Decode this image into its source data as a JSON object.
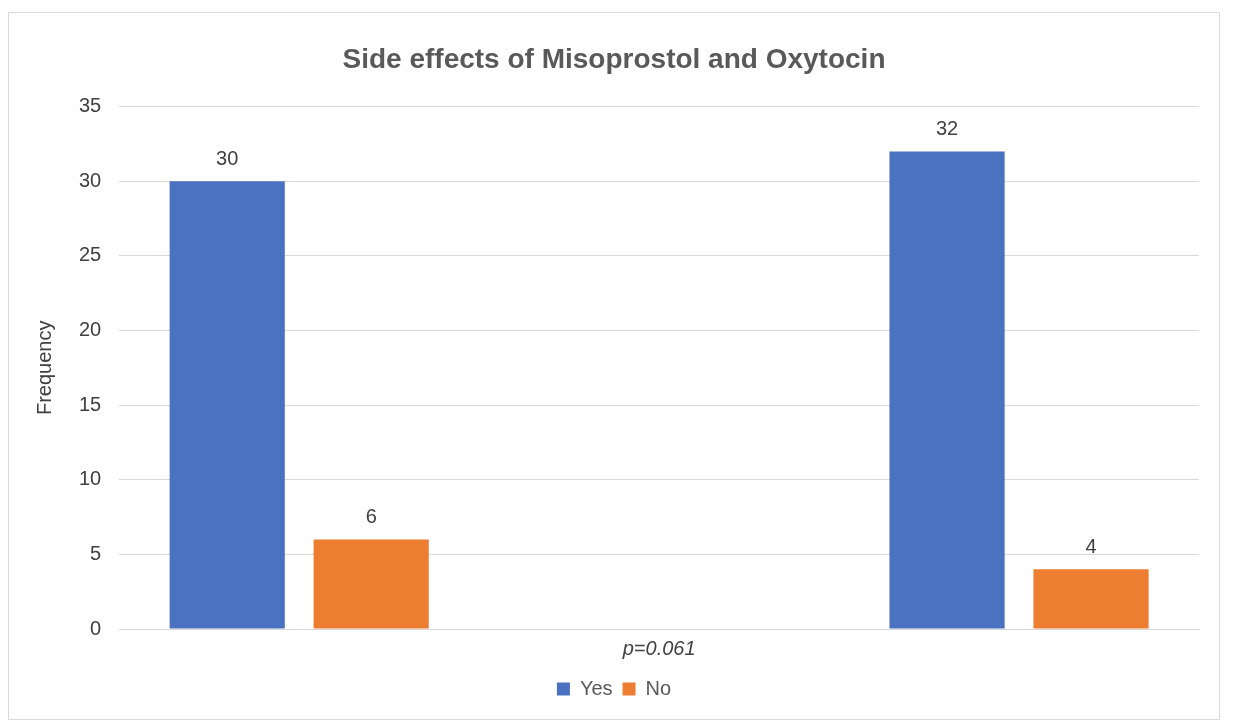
{
  "chart_data": {
    "type": "bar",
    "title": "Side effects of Misoprostol and Oxytocin",
    "ylabel": "Frequency",
    "categories": [
      null,
      "p=0.061",
      null
    ],
    "series": [
      {
        "name": "Yes",
        "color": "#4a72c0",
        "values": [
          30,
          0,
          32
        ],
        "value_labels": [
          "30",
          null,
          "32"
        ]
      },
      {
        "name": "No",
        "color": "#ed7d31",
        "values": [
          6,
          0,
          4
        ],
        "value_labels": [
          "6",
          null,
          "4"
        ]
      }
    ],
    "ylim": [
      0,
      35
    ],
    "yticks": [
      0,
      5,
      10,
      15,
      20,
      25,
      30,
      35
    ],
    "grid": "y",
    "legend": "bottom"
  }
}
